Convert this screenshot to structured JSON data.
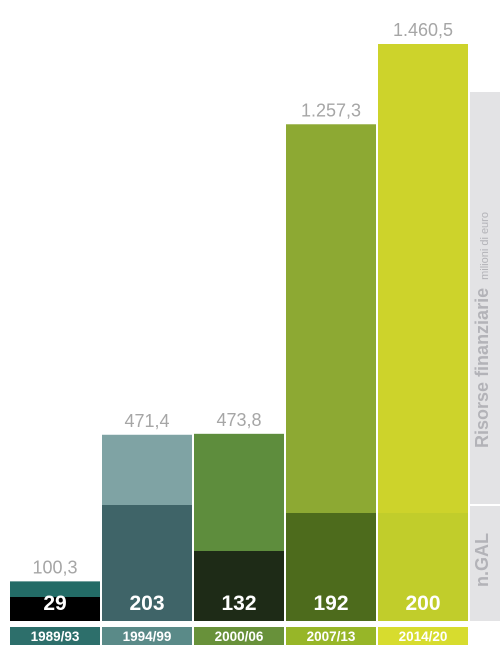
{
  "chart_data": {
    "type": "bar",
    "categories": [
      "1989/93",
      "1994/99",
      "2000/06",
      "2007/13",
      "2014/20"
    ],
    "series": [
      {
        "name": "Risorse finanziarie",
        "values": [
          100.3,
          471.4,
          473.8,
          1257.3,
          1460.5
        ],
        "labels": [
          "100,3",
          "471,4",
          "473,8",
          "1.257,3",
          "1.460,5"
        ]
      },
      {
        "name": "n.GAL",
        "values": [
          29,
          203,
          132,
          192,
          200
        ],
        "labels": [
          "29",
          "203",
          "132",
          "192",
          "200"
        ]
      }
    ],
    "ylim": [
      0,
      1460.5
    ],
    "side_label_main": "Risorse finanziarie",
    "side_label_unit": "milioni di euro",
    "side_label_gal": "n.GAL",
    "grid": false,
    "colors": {
      "top": [
        "#236b66",
        "#7fa3a4",
        "#5e8d3d",
        "#8da933",
        "#cdd32b"
      ],
      "mid": [
        "#000000",
        "#3f6468",
        "#1e2b17",
        "#4d6b1c",
        "#c1cd2b"
      ],
      "category_bg": [
        "#2d6f6b",
        "#5a8a88",
        "#68913a",
        "#97b628",
        "#d7dc2e"
      ],
      "value_label": "#a6a6a6",
      "side_band": "#e3e3e5",
      "side_text": "#b3b3b8"
    }
  }
}
